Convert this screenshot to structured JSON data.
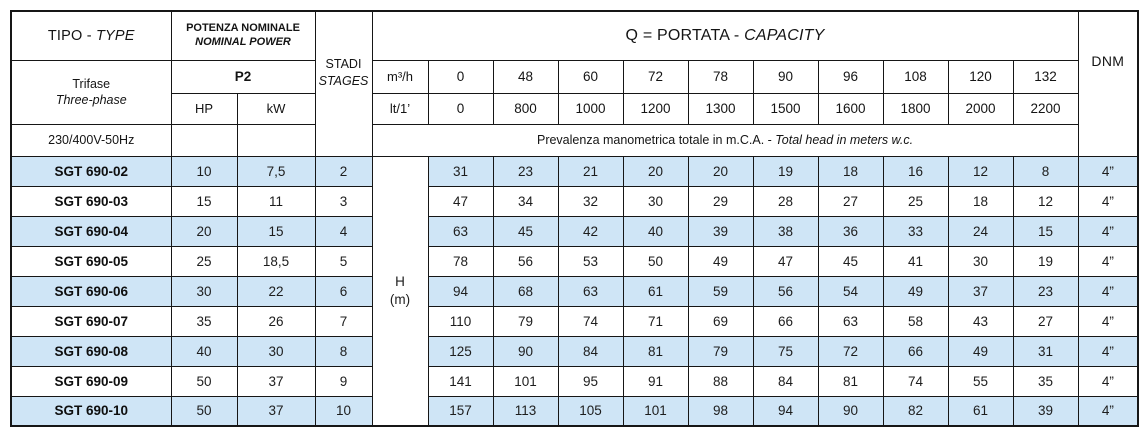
{
  "header": {
    "tipo_type": {
      "main": "TIPO - ",
      "italic": "TYPE"
    },
    "trifase": {
      "line1": "Trifase",
      "line2": "Three-phase"
    },
    "voltage": "230/400V-50Hz",
    "potenza": {
      "line1": "POTENZA NOMINALE",
      "line2": "NOMINAL POWER"
    },
    "p2": "P2",
    "hp": "HP",
    "kw": "kW",
    "stadi": {
      "line1": "STADI",
      "line2": "STAGES"
    },
    "q_header": {
      "main": "Q = PORTATA - ",
      "italic": "CAPACITY"
    },
    "m3h_label": "m³/h",
    "lt_label": "lt/1’",
    "m3h_values": [
      "0",
      "48",
      "60",
      "72",
      "78",
      "90",
      "96",
      "108",
      "120",
      "132"
    ],
    "lt_values": [
      "0",
      "800",
      "1000",
      "1200",
      "1300",
      "1500",
      "1600",
      "1800",
      "2000",
      "2200"
    ],
    "prevalenza": {
      "main": "Prevalenza manometrica totale in m.C.A. - ",
      "italic": "Total head in meters w.c."
    },
    "dnm": "DNM",
    "h_label": {
      "line1": "H",
      "line2": "(m)"
    }
  },
  "rows": [
    {
      "type": "SGT 690-02",
      "hp": "10",
      "kw": "7,5",
      "stages": "2",
      "values": [
        "31",
        "23",
        "21",
        "20",
        "20",
        "19",
        "18",
        "16",
        "12",
        "8"
      ],
      "dnm": "4”"
    },
    {
      "type": "SGT 690-03",
      "hp": "15",
      "kw": "11",
      "stages": "3",
      "values": [
        "47",
        "34",
        "32",
        "30",
        "29",
        "28",
        "27",
        "25",
        "18",
        "12"
      ],
      "dnm": "4”"
    },
    {
      "type": "SGT 690-04",
      "hp": "20",
      "kw": "15",
      "stages": "4",
      "values": [
        "63",
        "45",
        "42",
        "40",
        "39",
        "38",
        "36",
        "33",
        "24",
        "15"
      ],
      "dnm": "4”"
    },
    {
      "type": "SGT 690-05",
      "hp": "25",
      "kw": "18,5",
      "stages": "5",
      "values": [
        "78",
        "56",
        "53",
        "50",
        "49",
        "47",
        "45",
        "41",
        "30",
        "19"
      ],
      "dnm": "4”"
    },
    {
      "type": "SGT 690-06",
      "hp": "30",
      "kw": "22",
      "stages": "6",
      "values": [
        "94",
        "68",
        "63",
        "61",
        "59",
        "56",
        "54",
        "49",
        "37",
        "23"
      ],
      "dnm": "4”"
    },
    {
      "type": "SGT 690-07",
      "hp": "35",
      "kw": "26",
      "stages": "7",
      "values": [
        "110",
        "79",
        "74",
        "71",
        "69",
        "66",
        "63",
        "58",
        "43",
        "27"
      ],
      "dnm": "4”"
    },
    {
      "type": "SGT 690-08",
      "hp": "40",
      "kw": "30",
      "stages": "8",
      "values": [
        "125",
        "90",
        "84",
        "81",
        "79",
        "75",
        "72",
        "66",
        "49",
        "31"
      ],
      "dnm": "4”"
    },
    {
      "type": "SGT 690-09",
      "hp": "50",
      "kw": "37",
      "stages": "9",
      "values": [
        "141",
        "101",
        "95",
        "91",
        "88",
        "84",
        "81",
        "74",
        "55",
        "35"
      ],
      "dnm": "4”"
    },
    {
      "type": "SGT 690-10",
      "hp": "50",
      "kw": "37",
      "stages": "10",
      "values": [
        "157",
        "113",
        "105",
        "101",
        "98",
        "94",
        "90",
        "82",
        "61",
        "39"
      ],
      "dnm": "4”"
    }
  ]
}
